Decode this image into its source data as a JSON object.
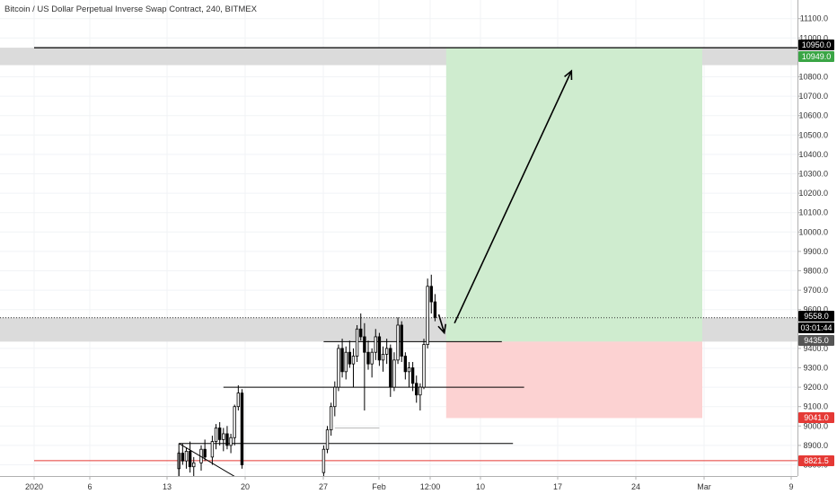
{
  "chart_title": "Bitcoin / US Dollar Perpetual Inverse Swap Contract, 240, BITMEX",
  "price_labels": {
    "short_entry": "10950.0",
    "target": "10949.0",
    "current_price": "9558.0",
    "countdown": "03:01:44",
    "entry": "9435.0",
    "stop": "9041.0",
    "red_line": "8821.5"
  },
  "colors": {
    "profit_zone": "#cfeccf",
    "loss_zone": "#fcd2d2",
    "grey_zone": "#d9d9d9",
    "up_candle": "#ffffff",
    "down_candle": "#000000",
    "red_line": "#e53935",
    "green_tag": "#3aa545",
    "red_tag": "#e53935"
  },
  "chart_data": {
    "type": "candlestick",
    "title": "Bitcoin / US Dollar Perpetual Inverse Swap Contract, 240, BITMEX",
    "xlabel": "",
    "ylabel": "",
    "ylim": [
      8740,
      11170
    ],
    "x_ticks": [
      "2020",
      "6",
      "13",
      "20",
      "27",
      "Feb",
      "12:00",
      "10",
      "17",
      "24",
      "Mar",
      "9"
    ],
    "y_ticks": [
      "8800.0",
      "8900.0",
      "9000.0",
      "9100.0",
      "9200.0",
      "9300.0",
      "9400.0",
      "9500.0",
      "9600.0",
      "9700.0",
      "9800.0",
      "9900.0",
      "10000.0",
      "10100.0",
      "10200.0",
      "10300.0",
      "10400.0",
      "10500.0",
      "10600.0",
      "10700.0",
      "10800.0",
      "10900.0",
      "11000.0",
      "11100.0"
    ],
    "grid": true,
    "candles": [
      [
        "2020-01-14 00:00",
        8780,
        8870,
        8740,
        8860
      ],
      [
        "2020-01-14 08:00",
        8860,
        8910,
        8800,
        8820
      ],
      [
        "2020-01-14 16:00",
        8820,
        8890,
        8780,
        8870
      ],
      [
        "2020-01-15 00:00",
        8870,
        8920,
        8760,
        8790
      ],
      [
        "2020-01-15 08:00",
        8790,
        8840,
        8740,
        8810
      ],
      [
        "2020-01-16 00:00",
        8810,
        8900,
        8770,
        8880
      ],
      [
        "2020-01-16 08:00",
        8880,
        8930,
        8820,
        8840
      ],
      [
        "2020-01-17 00:00",
        8840,
        8950,
        8800,
        8920
      ],
      [
        "2020-01-17 08:00",
        8920,
        9010,
        8880,
        8990
      ],
      [
        "2020-01-17 16:00",
        8990,
        9020,
        8900,
        8930
      ],
      [
        "2020-01-18 00:00",
        8930,
        8990,
        8870,
        8960
      ],
      [
        "2020-01-18 08:00",
        8960,
        9000,
        8880,
        8900
      ],
      [
        "2020-01-18 16:00",
        8900,
        8960,
        8860,
        8940
      ],
      [
        "2020-01-19 00:00",
        8940,
        9110,
        8900,
        9100
      ],
      [
        "2020-01-19 08:00",
        9100,
        9210,
        9080,
        9170
      ],
      [
        "2020-01-19 16:00",
        9170,
        9190,
        8780,
        8800
      ],
      [
        "2020-01-27 00:00",
        8760,
        8900,
        8740,
        8880
      ],
      [
        "2020-01-27 08:00",
        8880,
        9000,
        8860,
        8980
      ],
      [
        "2020-01-27 16:00",
        8980,
        9120,
        8950,
        9100
      ],
      [
        "2020-01-28 00:00",
        9100,
        9230,
        9050,
        9200
      ],
      [
        "2020-01-28 08:00",
        9200,
        9420,
        9180,
        9400
      ],
      [
        "2020-01-28 16:00",
        9400,
        9450,
        9250,
        9280
      ],
      [
        "2020-01-29 00:00",
        9280,
        9410,
        9240,
        9380
      ],
      [
        "2020-01-29 08:00",
        9380,
        9440,
        9300,
        9320
      ],
      [
        "2020-01-29 16:00",
        9320,
        9400,
        9200,
        9360
      ],
      [
        "2020-01-30 00:00",
        9360,
        9520,
        9330,
        9500
      ],
      [
        "2020-01-30 08:00",
        9500,
        9580,
        9440,
        9460
      ],
      [
        "2020-01-30 16:00",
        9460,
        9530,
        9080,
        9380
      ],
      [
        "2020-01-31 00:00",
        9380,
        9440,
        9290,
        9320
      ],
      [
        "2020-01-31 08:00",
        9320,
        9400,
        9250,
        9380
      ],
      [
        "2020-01-31 16:00",
        9380,
        9500,
        9340,
        9460
      ],
      [
        "2020-02-01 00:00",
        9460,
        9480,
        9310,
        9340
      ],
      [
        "2020-02-01 08:00",
        9340,
        9410,
        9280,
        9370
      ],
      [
        "2020-02-01 16:00",
        9370,
        9450,
        9320,
        9400
      ],
      [
        "2020-02-02 00:00",
        9400,
        9420,
        9150,
        9200
      ],
      [
        "2020-02-02 08:00",
        9200,
        9380,
        9180,
        9340
      ],
      [
        "2020-02-02 16:00",
        9340,
        9560,
        9320,
        9520
      ],
      [
        "2020-02-03 00:00",
        9520,
        9540,
        9330,
        9360
      ],
      [
        "2020-02-03 08:00",
        9360,
        9380,
        9240,
        9280
      ],
      [
        "2020-02-03 16:00",
        9280,
        9330,
        9200,
        9300
      ],
      [
        "2020-02-04 00:00",
        9300,
        9330,
        9180,
        9220
      ],
      [
        "2020-02-04 08:00",
        9220,
        9260,
        9120,
        9160
      ],
      [
        "2020-02-04 16:00",
        9160,
        9220,
        9080,
        9200
      ],
      [
        "2020-02-05 00:00",
        9200,
        9450,
        9190,
        9420
      ],
      [
        "2020-02-05 08:00",
        9420,
        9760,
        9400,
        9720
      ],
      [
        "2020-02-05 16:00",
        9720,
        9780,
        9580,
        9640
      ],
      [
        "2020-02-06 00:00",
        9640,
        9680,
        9540,
        9560
      ]
    ],
    "horizontal_lines": [
      {
        "from": "2020-01-27",
        "to": "2020-02-12",
        "y": 9435.0
      },
      {
        "from": "2020-01-18",
        "to": "2020-02-14",
        "y": 9200.0
      },
      {
        "from": "2020-01-28",
        "to": "2020-02-01",
        "y": 8990.0
      },
      {
        "from": "2020-01-14",
        "to": "2020-02-13",
        "y": 8910.0
      },
      {
        "from": "2020-01-01",
        "to": "2020-03-13",
        "y": 8821.5
      },
      {
        "from": "2020-01-01",
        "to": "2020-03-13",
        "y": 10950.0
      }
    ],
    "zones": [
      {
        "kind": "grey",
        "y_low": 10860,
        "y_high": 10950
      },
      {
        "kind": "grey",
        "y_low": 9435,
        "y_high": 9560
      },
      {
        "kind": "profit",
        "from": "2020-02-07",
        "to": "2020-03-01",
        "y_low": 9435.0,
        "y_high": 10949.0
      },
      {
        "kind": "loss",
        "from": "2020-02-07",
        "to": "2020-03-01",
        "y_low": 9041.0,
        "y_high": 9435.0
      }
    ],
    "arrows": [
      {
        "from": [
          "2020-02-07 18:00",
          9530
        ],
        "to": [
          "2020-02-18 06:00",
          10830
        ]
      },
      {
        "from": [
          "2020-02-06 08:00",
          9575
        ],
        "to": [
          "2020-02-06 20:00",
          9480
        ]
      }
    ]
  }
}
